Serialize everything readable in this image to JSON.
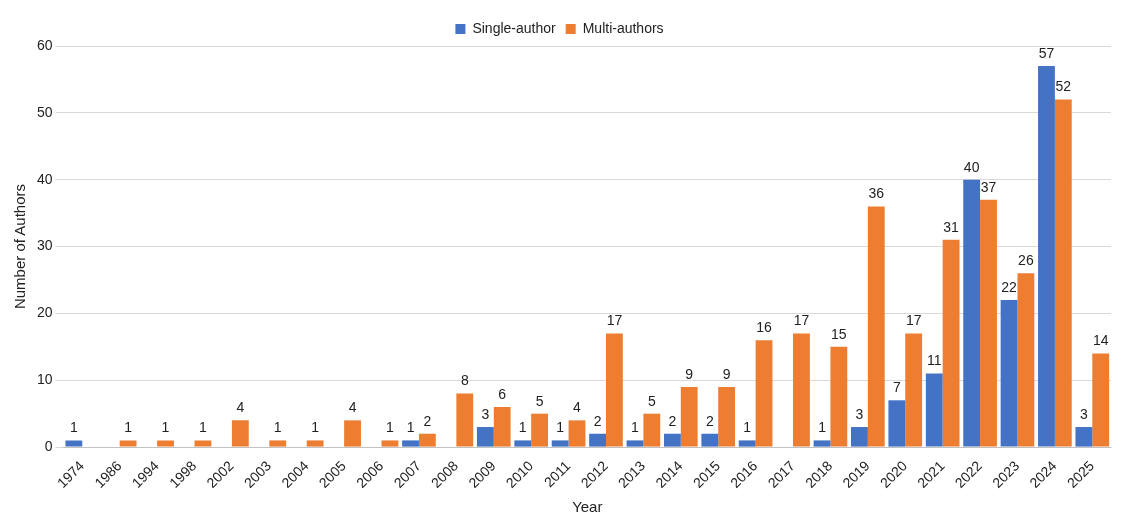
{
  "chart_data": {
    "type": "bar",
    "xlabel": "Year",
    "ylabel": "Number of Authors",
    "categories": [
      "1974",
      "1986",
      "1994",
      "1998",
      "2002",
      "2003",
      "2004",
      "2005",
      "2006",
      "2007",
      "2008",
      "2009",
      "2010",
      "2011",
      "2012",
      "2013",
      "2014",
      "2015",
      "2016",
      "2017",
      "2018",
      "2019",
      "2020",
      "2021",
      "2022",
      "2023",
      "2024",
      "2025"
    ],
    "series": [
      {
        "name": "Single-author",
        "color": "#4472c4",
        "values": [
          1,
          null,
          null,
          null,
          null,
          null,
          null,
          null,
          null,
          1,
          null,
          3,
          1,
          1,
          2,
          1,
          2,
          2,
          1,
          null,
          1,
          3,
          7,
          11,
          40,
          22,
          57,
          3
        ]
      },
      {
        "name": "Multi-authors",
        "color": "#ed7d31",
        "values": [
          null,
          1,
          1,
          1,
          4,
          1,
          1,
          4,
          1,
          2,
          8,
          6,
          5,
          4,
          17,
          5,
          9,
          9,
          16,
          17,
          15,
          36,
          17,
          31,
          37,
          26,
          52,
          14
        ]
      }
    ],
    "ylim": [
      0,
      60
    ],
    "yticks": [
      0,
      10,
      20,
      30,
      40,
      50,
      60
    ],
    "grid": "y",
    "legend": "top",
    "data_labels": true
  }
}
